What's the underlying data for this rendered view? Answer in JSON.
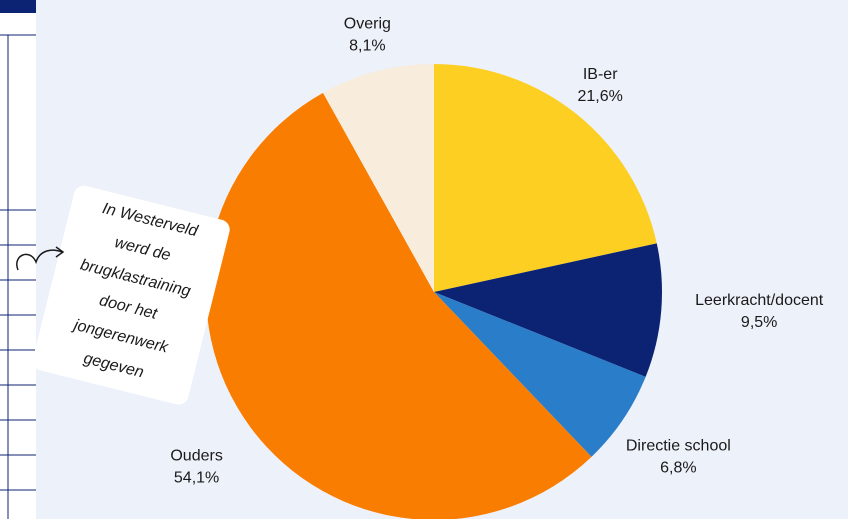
{
  "chart_data": {
    "type": "pie",
    "categories": [
      "IB-er",
      "Leerkracht/docent",
      "Directie school",
      "Ouders",
      "Overig"
    ],
    "values": [
      21.6,
      9.5,
      6.8,
      54.1,
      8.1
    ],
    "value_labels": [
      "21,6%",
      "9,5%",
      "6,8%",
      "54,1%",
      "8,1%"
    ],
    "colors": [
      "#fdcf23",
      "#0c2272",
      "#2a7dc8",
      "#f97d00",
      "#f8ecdc"
    ],
    "annotation": [
      "In Westerveld",
      "werd de",
      "brugklastraining",
      "door het",
      "jongerenwerk",
      "gegeven"
    ]
  }
}
